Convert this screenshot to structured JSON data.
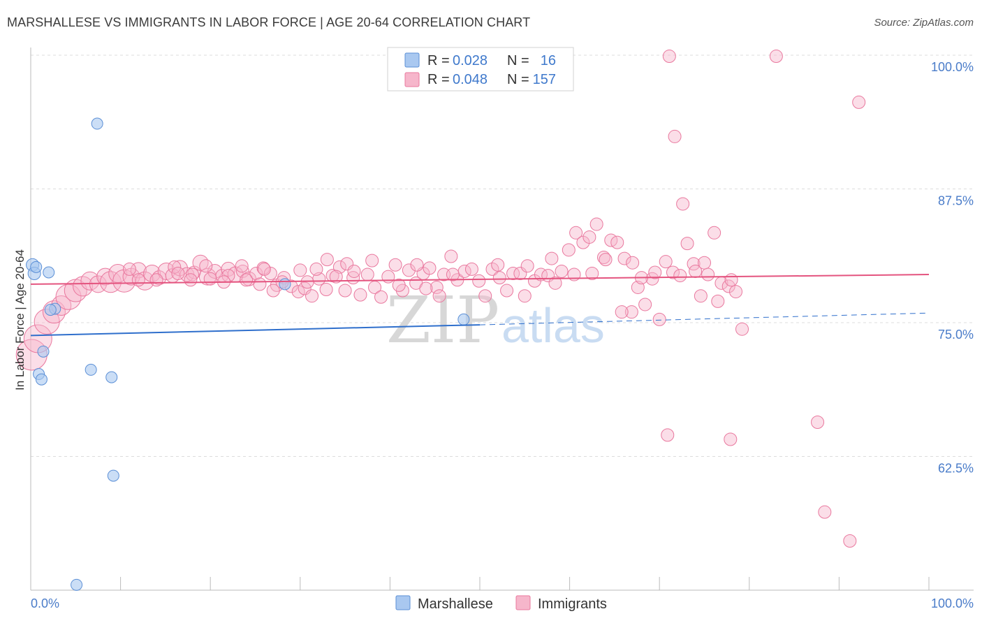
{
  "title": "MARSHALLESE VS IMMIGRANTS IN LABOR FORCE | AGE 20-64 CORRELATION CHART",
  "source": "Source: ZipAtlas.com",
  "watermark": {
    "zip": "ZIP",
    "atlas": "atlas"
  },
  "colors": {
    "blue_fill": "#a9c8f0",
    "blue_stroke": "#5b8fd6",
    "blue_line": "#2f6fcc",
    "pink_fill": "#f6b6cb",
    "pink_stroke": "#e9789e",
    "pink_line": "#e4547f",
    "axis_label": "#4a7cc9",
    "grid": "#dcdcdc"
  },
  "legend_top": {
    "rows": [
      {
        "r_label": "R =",
        "r_value": "0.028",
        "n_label": "N =",
        "n_value": "16"
      },
      {
        "r_label": "R =",
        "r_value": "0.048",
        "n_label": "N =",
        "n_value": "157"
      }
    ]
  },
  "legend_bottom": {
    "series1": "Marshallese",
    "series2": "Immigrants"
  },
  "chart_data": {
    "type": "scatter",
    "title": "MARSHALLESE VS IMMIGRANTS IN LABOR FORCE | AGE 20-64 CORRELATION CHART",
    "xlabel": "",
    "ylabel": "In Labor Force | Age 20-64",
    "xlim": [
      0,
      100
    ],
    "ylim": [
      51,
      101.5
    ],
    "x_tick_labels": [
      "0.0%",
      "100.0%"
    ],
    "y_ticks": [
      62.5,
      75.0,
      87.5,
      100.0
    ],
    "y_tick_labels": [
      "62.5%",
      "75.0%",
      "87.5%",
      "100.0%"
    ],
    "series": [
      {
        "name": "Marshallese",
        "r": 0.028,
        "n": 16,
        "trend": {
          "x0": 0,
          "y0": 73.8,
          "x1": 50,
          "y1": 74.8,
          "dash_x1": 100,
          "dash_y1": 75.9
        },
        "points": [
          [
            0.2,
            80.4,
            9
          ],
          [
            0.4,
            79.6,
            9
          ],
          [
            0.6,
            80.2,
            8
          ],
          [
            2.0,
            79.7,
            8
          ],
          [
            7.4,
            93.6,
            8
          ],
          [
            2.7,
            76.3,
            8
          ],
          [
            1.4,
            72.3,
            8
          ],
          [
            0.9,
            70.2,
            8
          ],
          [
            1.2,
            69.7,
            8
          ],
          [
            6.7,
            70.6,
            8
          ],
          [
            9.0,
            69.9,
            8
          ],
          [
            9.2,
            60.7,
            8
          ],
          [
            5.1,
            50.5,
            8
          ],
          [
            28.3,
            78.6,
            8
          ],
          [
            48.2,
            75.3,
            8
          ],
          [
            2.2,
            76.2,
            8
          ]
        ]
      },
      {
        "name": "Immigrants",
        "r": 0.048,
        "n": 157,
        "trend": {
          "x0": 0,
          "y0": 78.6,
          "x1": 100,
          "y1": 79.5
        },
        "points": [
          [
            0.1,
            72.0,
            22
          ],
          [
            0.8,
            73.5,
            20
          ],
          [
            1.8,
            75.1,
            18
          ],
          [
            2.6,
            76.0,
            16
          ],
          [
            3.4,
            76.6,
            14
          ],
          [
            4.2,
            77.4,
            18
          ],
          [
            5.0,
            78.0,
            16
          ],
          [
            5.8,
            78.4,
            14
          ],
          [
            6.6,
            78.9,
            13
          ],
          [
            7.5,
            78.6,
            12
          ],
          [
            8.3,
            79.3,
            12
          ],
          [
            8.9,
            78.8,
            15
          ],
          [
            9.7,
            79.6,
            13
          ],
          [
            10.4,
            78.9,
            16
          ],
          [
            11.2,
            79.3,
            12
          ],
          [
            12.0,
            79.9,
            11
          ],
          [
            12.7,
            78.9,
            13
          ],
          [
            13.5,
            79.6,
            12
          ],
          [
            14.3,
            79.2,
            10
          ],
          [
            15.1,
            79.8,
            12
          ],
          [
            15.8,
            79.4,
            10
          ],
          [
            16.6,
            80.1,
            11
          ],
          [
            17.4,
            79.5,
            10
          ],
          [
            18.2,
            79.7,
            9
          ],
          [
            18.9,
            80.6,
            11
          ],
          [
            19.7,
            79.3,
            12
          ],
          [
            20.5,
            79.8,
            10
          ],
          [
            21.3,
            79.4,
            9
          ],
          [
            22.0,
            80.0,
            10
          ],
          [
            22.8,
            79.5,
            11
          ],
          [
            23.6,
            79.8,
            9
          ],
          [
            24.3,
            79.1,
            10
          ],
          [
            25.1,
            79.6,
            9
          ],
          [
            25.9,
            80.1,
            9
          ],
          [
            26.7,
            79.6,
            9
          ],
          [
            27.4,
            78.5,
            9
          ],
          [
            28.2,
            79.2,
            9
          ],
          [
            29.0,
            78.4,
            9
          ],
          [
            29.8,
            77.9,
            9
          ],
          [
            30.5,
            78.2,
            9
          ],
          [
            31.3,
            77.5,
            9
          ],
          [
            32.1,
            79.1,
            9
          ],
          [
            32.9,
            78.1,
            9
          ],
          [
            33.6,
            79.4,
            9
          ],
          [
            34.4,
            80.2,
            9
          ],
          [
            35.2,
            80.5,
            9
          ],
          [
            35.9,
            79.2,
            9
          ],
          [
            36.7,
            77.6,
            9
          ],
          [
            37.5,
            79.5,
            9
          ],
          [
            38.3,
            78.3,
            9
          ],
          [
            39.0,
            77.4,
            9
          ],
          [
            39.8,
            79.3,
            9
          ],
          [
            40.6,
            80.4,
            9
          ],
          [
            41.4,
            78.0,
            9
          ],
          [
            42.1,
            79.9,
            9
          ],
          [
            42.9,
            78.7,
            9
          ],
          [
            43.7,
            79.6,
            9
          ],
          [
            44.4,
            80.1,
            9
          ],
          [
            45.2,
            78.3,
            9
          ],
          [
            46.0,
            79.5,
            9
          ],
          [
            46.8,
            81.2,
            9
          ],
          [
            47.5,
            79.0,
            9
          ],
          [
            48.3,
            79.8,
            9
          ],
          [
            49.1,
            80.0,
            9
          ],
          [
            49.9,
            78.9,
            9
          ],
          [
            50.6,
            77.5,
            9
          ],
          [
            51.4,
            80.0,
            9
          ],
          [
            52.2,
            79.2,
            9
          ],
          [
            53.0,
            78.0,
            9
          ],
          [
            53.7,
            79.6,
            9
          ],
          [
            54.5,
            79.6,
            9
          ],
          [
            55.3,
            80.3,
            9
          ],
          [
            56.1,
            78.9,
            9
          ],
          [
            56.8,
            79.5,
            9
          ],
          [
            57.6,
            79.4,
            9
          ],
          [
            58.4,
            78.7,
            9
          ],
          [
            59.1,
            79.8,
            9
          ],
          [
            59.9,
            81.8,
            9
          ],
          [
            60.7,
            83.4,
            9
          ],
          [
            61.5,
            82.5,
            9
          ],
          [
            62.2,
            83.0,
            9
          ],
          [
            63.0,
            84.2,
            9
          ],
          [
            63.8,
            81.1,
            9
          ],
          [
            64.6,
            82.7,
            9
          ],
          [
            65.3,
            82.5,
            9
          ],
          [
            66.1,
            81.0,
            9
          ],
          [
            66.9,
            76.0,
            9
          ],
          [
            67.6,
            78.3,
            9
          ],
          [
            68.4,
            76.7,
            9
          ],
          [
            69.2,
            79.1,
            9
          ],
          [
            70.0,
            75.3,
            9
          ],
          [
            70.7,
            80.7,
            9
          ],
          [
            71.5,
            79.7,
            9
          ],
          [
            72.3,
            79.4,
            9
          ],
          [
            73.1,
            82.4,
            9
          ],
          [
            73.8,
            80.5,
            9
          ],
          [
            74.6,
            77.5,
            9
          ],
          [
            75.4,
            79.5,
            9
          ],
          [
            76.1,
            83.4,
            9
          ],
          [
            76.9,
            78.7,
            9
          ],
          [
            77.7,
            78.4,
            9
          ],
          [
            78.5,
            77.9,
            9
          ],
          [
            79.2,
            74.4,
            9
          ],
          [
            70.9,
            64.5,
            9
          ],
          [
            77.9,
            64.1,
            9
          ],
          [
            87.6,
            65.7,
            9
          ],
          [
            88.4,
            57.3,
            9
          ],
          [
            91.2,
            54.6,
            9
          ],
          [
            92.2,
            95.6,
            9
          ],
          [
            71.7,
            92.4,
            9
          ],
          [
            71.1,
            99.9,
            9
          ],
          [
            83.0,
            99.9,
            9
          ],
          [
            72.6,
            86.1,
            9
          ],
          [
            58.0,
            81.0,
            9
          ],
          [
            55.0,
            77.5,
            9
          ],
          [
            52.0,
            80.4,
            9
          ],
          [
            47.0,
            79.5,
            9
          ],
          [
            44.0,
            78.2,
            9
          ],
          [
            41.0,
            78.5,
            9
          ],
          [
            38.0,
            80.8,
            9
          ],
          [
            35.0,
            78.0,
            9
          ],
          [
            33.0,
            80.9,
            9
          ],
          [
            30.0,
            79.9,
            9
          ],
          [
            28.0,
            78.8,
            9
          ],
          [
            26.0,
            80.0,
            9
          ],
          [
            24.0,
            79.0,
            9
          ],
          [
            22.0,
            79.4,
            9
          ],
          [
            20.0,
            79.1,
            9
          ],
          [
            18.0,
            79.5,
            9
          ],
          [
            16.0,
            80.2,
            9
          ],
          [
            14.0,
            79.0,
            9
          ],
          [
            12.0,
            79.0,
            9
          ],
          [
            11.0,
            80.0,
            9
          ],
          [
            60.5,
            79.5,
            9
          ],
          [
            62.5,
            79.6,
            9
          ],
          [
            64.0,
            80.9,
            9
          ],
          [
            65.8,
            76.0,
            9
          ],
          [
            67.0,
            80.6,
            9
          ],
          [
            68.0,
            79.2,
            9
          ],
          [
            69.5,
            79.7,
            9
          ],
          [
            74.0,
            79.8,
            9
          ],
          [
            75.0,
            80.6,
            9
          ],
          [
            76.5,
            77.0,
            9
          ],
          [
            78.0,
            79.0,
            9
          ],
          [
            36.0,
            79.8,
            9
          ],
          [
            34.0,
            79.3,
            9
          ],
          [
            31.8,
            80.0,
            9
          ],
          [
            30.8,
            78.8,
            9
          ],
          [
            27.0,
            78.0,
            9
          ],
          [
            25.5,
            78.6,
            9
          ],
          [
            23.5,
            80.3,
            9
          ],
          [
            21.5,
            78.8,
            9
          ],
          [
            19.5,
            80.3,
            9
          ],
          [
            17.8,
            79.0,
            9
          ],
          [
            16.4,
            79.6,
            9
          ],
          [
            45.5,
            77.5,
            9
          ],
          [
            43.0,
            80.4,
            9
          ]
        ]
      }
    ]
  }
}
